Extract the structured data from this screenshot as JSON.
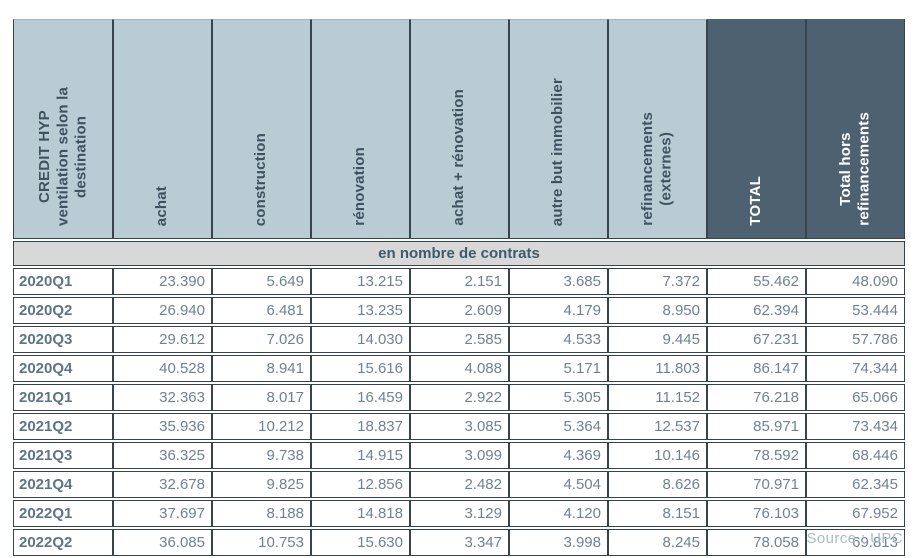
{
  "table": {
    "corner_header": "CREDIT HYP\nventilation selon la\ndestination",
    "columns": [
      {
        "label": "achat",
        "dark": false
      },
      {
        "label": "construction",
        "dark": false
      },
      {
        "label": "rénovation",
        "dark": false
      },
      {
        "label": "achat + rénovation",
        "dark": false
      },
      {
        "label": "autre but immobilier",
        "dark": false
      },
      {
        "label": "refinancements\n(externes)",
        "dark": false
      },
      {
        "label": "TOTAL",
        "dark": true
      },
      {
        "label": "Total hors\nrefinancements",
        "dark": true
      }
    ],
    "section_header": "en nombre de contrats",
    "rows": [
      {
        "label": "2020Q1",
        "values": [
          "23.390",
          "5.649",
          "13.215",
          "2.151",
          "3.685",
          "7.372",
          "55.462",
          "48.090"
        ]
      },
      {
        "label": "2020Q2",
        "values": [
          "26.940",
          "6.481",
          "13.235",
          "2.609",
          "4.179",
          "8.950",
          "62.394",
          "53.444"
        ]
      },
      {
        "label": "2020Q3",
        "values": [
          "29.612",
          "7.026",
          "14.030",
          "2.585",
          "4.533",
          "9.445",
          "67.231",
          "57.786"
        ]
      },
      {
        "label": "2020Q4",
        "values": [
          "40.528",
          "8.941",
          "15.616",
          "4.088",
          "5.171",
          "11.803",
          "86.147",
          "74.344"
        ]
      },
      {
        "label": "2021Q1",
        "values": [
          "32.363",
          "8.017",
          "16.459",
          "2.922",
          "5.305",
          "11.152",
          "76.218",
          "65.066"
        ]
      },
      {
        "label": "2021Q2",
        "values": [
          "35.936",
          "10.212",
          "18.837",
          "3.085",
          "5.364",
          "12.537",
          "85.971",
          "73.434"
        ]
      },
      {
        "label": "2021Q3",
        "values": [
          "36.325",
          "9.738",
          "14.915",
          "3.099",
          "4.369",
          "10.146",
          "78.592",
          "68.446"
        ]
      },
      {
        "label": "2021Q4",
        "values": [
          "32.678",
          "9.825",
          "12.856",
          "2.482",
          "4.504",
          "8.626",
          "70.971",
          "62.345"
        ]
      },
      {
        "label": "2022Q1",
        "values": [
          "37.697",
          "8.188",
          "14.818",
          "3.129",
          "4.120",
          "8.151",
          "76.103",
          "67.952"
        ]
      },
      {
        "label": "2022Q2",
        "values": [
          "36.085",
          "10.753",
          "15.630",
          "3.347",
          "3.998",
          "8.245",
          "78.058",
          "69.813"
        ]
      }
    ],
    "source": "Source : UPC",
    "colors": {
      "header_light_bg": "#b9cbd3",
      "header_dark_bg": "#4d6170",
      "header_text": "#3e5362",
      "header_text_on_dark": "#ffffff",
      "section_bg": "#d8d8d8",
      "border": "#38444c",
      "value_text": "#6f8294",
      "row_label_text": "#5f7486",
      "source_text": "#a9bdc9"
    }
  }
}
